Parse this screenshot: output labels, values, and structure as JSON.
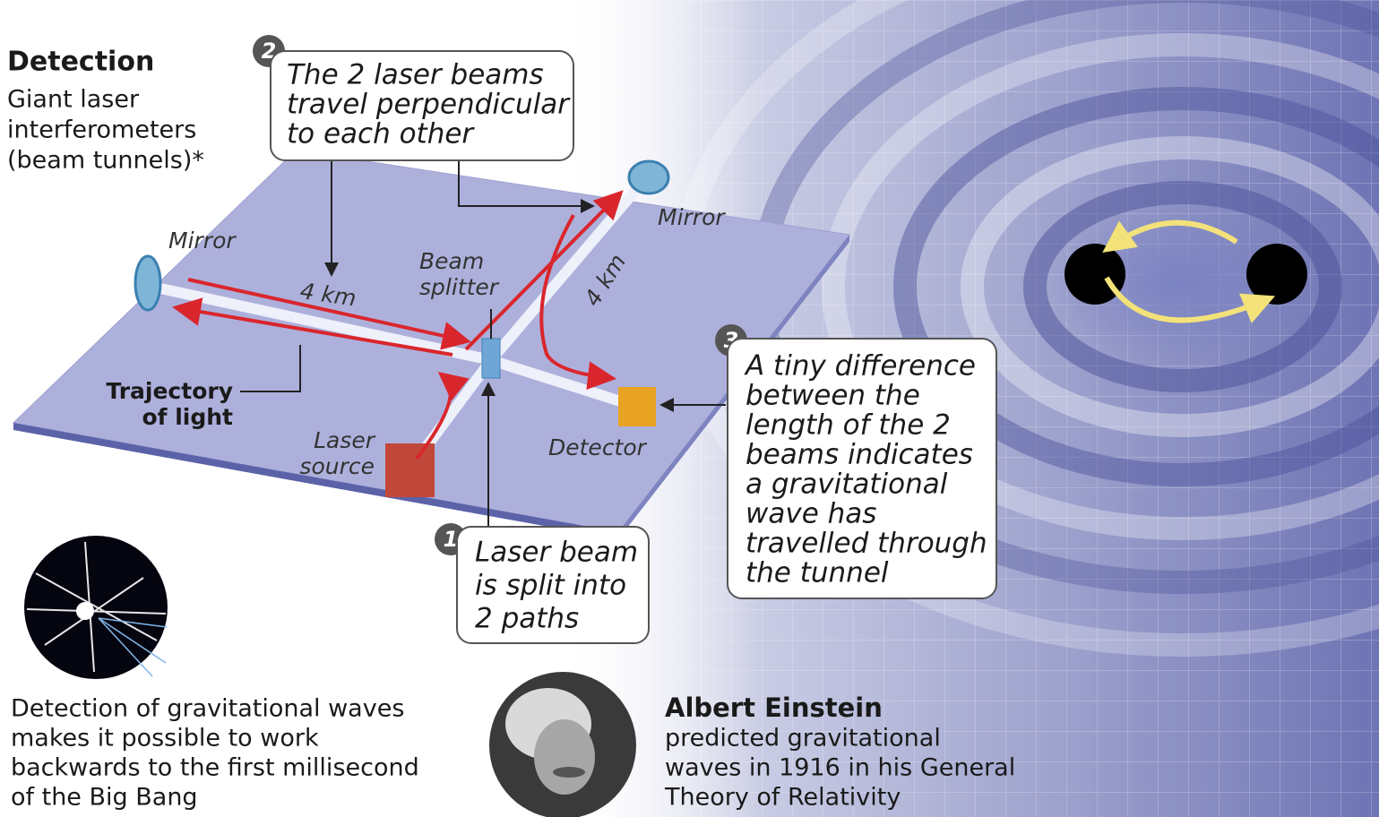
{
  "detection": {
    "title": "Detection",
    "lines": [
      "Giant laser",
      "interferometers",
      "(beam tunnels)*"
    ]
  },
  "steps": [
    {
      "number": "1",
      "lines": [
        "Laser beam",
        "is split into",
        "2 paths"
      ]
    },
    {
      "number": "2",
      "lines": [
        "The 2 laser beams",
        "travel perpendicular",
        "to each other"
      ]
    },
    {
      "number": "3",
      "lines": [
        "A tiny difference",
        "between the",
        "length of the 2",
        "beams indicates",
        "a gravitational",
        "wave has",
        "travelled through",
        "the tunnel"
      ]
    }
  ],
  "labels": {
    "mirror_left": "Mirror",
    "mirror_right": "Mirror",
    "distance_left": "4 km",
    "distance_right": "4 km",
    "beam_splitter": [
      "Beam",
      "splitter"
    ],
    "trajectory": [
      "Trajectory",
      "of light"
    ],
    "laser_source": [
      "Laser",
      "source"
    ],
    "detector": "Detector"
  },
  "big_bang": {
    "lines": [
      "Detection of gravitational waves",
      "makes it possible to work",
      "backwards to the first millisecond",
      "of the Big Bang"
    ]
  },
  "einstein": {
    "name": "Albert Einstein",
    "lines": [
      "predicted gravitational",
      "waves in 1916 in his General",
      "Theory of Relativity"
    ]
  }
}
